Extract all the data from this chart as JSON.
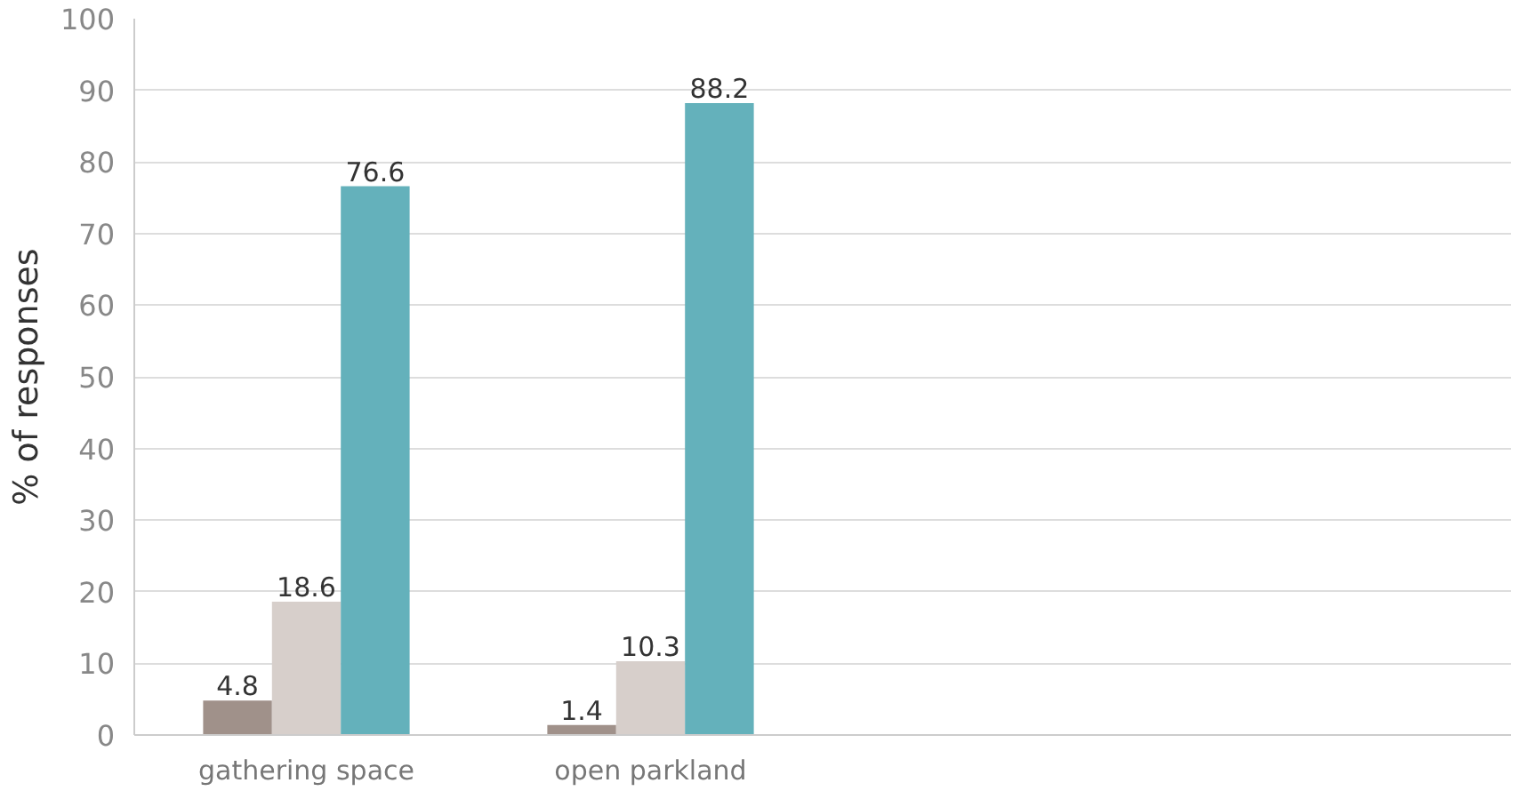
{
  "chart_data": {
    "type": "bar",
    "ylabel": "% of responses",
    "categories": [
      "gathering space",
      "open parkland",
      null,
      null
    ],
    "series": [
      {
        "color": "#a0918a",
        "values": [
          4.8,
          1.4,
          null,
          null
        ]
      },
      {
        "color": "#d7cfcb",
        "values": [
          18.6,
          10.3,
          null,
          null
        ]
      },
      {
        "color": "#64b1bb",
        "values": [
          76.6,
          88.2,
          null,
          null
        ]
      }
    ],
    "ylim": [
      0,
      100
    ],
    "yticks": [
      0,
      10,
      20,
      30,
      40,
      50,
      60,
      70,
      80,
      90,
      100
    ],
    "grid": "y",
    "data_labels": true
  }
}
